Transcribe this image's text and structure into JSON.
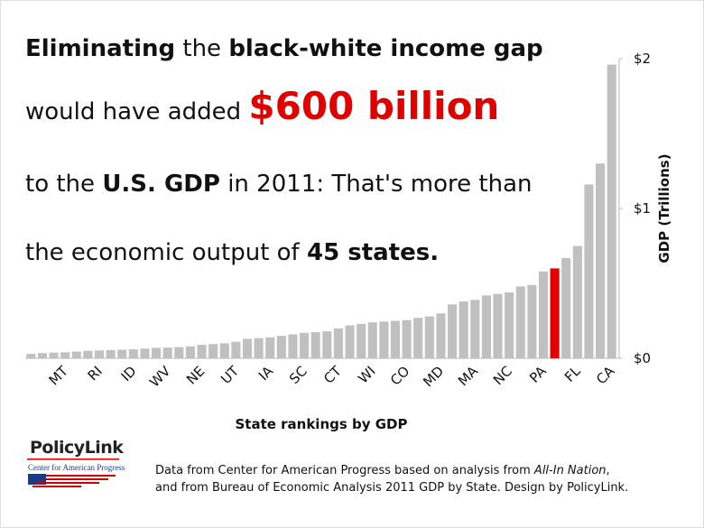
{
  "chart_data": {
    "type": "bar",
    "title_lines": [
      [
        {
          "text": "Eliminating",
          "style": "bold"
        },
        {
          "text": " the ",
          "style": "normal"
        },
        {
          "text": "black-white income gap",
          "style": "bold"
        }
      ],
      [
        {
          "text": "would have added ",
          "style": "normal"
        },
        {
          "text": "$600 billion",
          "style": "highlight"
        }
      ],
      [
        {
          "text": "to the ",
          "style": "normal"
        },
        {
          "text": "U.S. GDP",
          "style": "bold"
        },
        {
          "text": " in 2011: That's more than",
          "style": "normal"
        }
      ],
      [
        {
          "text": "the economic output of ",
          "style": "normal"
        },
        {
          "text": "45 states.",
          "style": "bold"
        }
      ]
    ],
    "categories": [
      null,
      null,
      null,
      "MT",
      null,
      null,
      "RI",
      null,
      null,
      "ID",
      null,
      null,
      "WV",
      null,
      null,
      "NE",
      null,
      null,
      "UT",
      null,
      null,
      "IA",
      null,
      null,
      "SC",
      null,
      null,
      "CT",
      null,
      null,
      "WI",
      null,
      null,
      "CO",
      null,
      null,
      "MD",
      null,
      null,
      "MA",
      null,
      null,
      "NC",
      null,
      null,
      "PA",
      null,
      null,
      "FL",
      null,
      null,
      "CA"
    ],
    "values": [
      0.03,
      0.035,
      0.038,
      0.04,
      0.045,
      0.05,
      0.052,
      0.055,
      0.058,
      0.06,
      0.065,
      0.07,
      0.072,
      0.075,
      0.08,
      0.09,
      0.095,
      0.1,
      0.11,
      0.13,
      0.135,
      0.14,
      0.15,
      0.16,
      0.17,
      0.175,
      0.18,
      0.2,
      0.22,
      0.23,
      0.24,
      0.245,
      0.25,
      0.255,
      0.27,
      0.28,
      0.3,
      0.36,
      0.38,
      0.39,
      0.42,
      0.43,
      0.44,
      0.48,
      0.49,
      0.58,
      0.6,
      0.67,
      0.75,
      1.16,
      1.3,
      1.96
    ],
    "color": "#c0c0c0",
    "highlight": {
      "index": 46,
      "color": "#e00000"
    },
    "ylim": [
      0,
      2
    ],
    "yticks": [
      {
        "value": 0,
        "label": "$0"
      },
      {
        "value": 1,
        "label": "$1"
      },
      {
        "value": 2,
        "label": "$2"
      }
    ],
    "y_label": "GDP (Trillions)",
    "x_label": "State rankings by GDP",
    "logo_primary": "PolicyLink",
    "logo_secondary": "Center for American Progress",
    "source_lines": [
      [
        {
          "text": "Data from Center for American Progress based on analysis from ",
          "style": "normal"
        },
        {
          "text": "All-In Nation",
          "style": "italic"
        },
        {
          "text": ",",
          "style": "normal"
        }
      ],
      [
        {
          "text": "and from Bureau of Economic Analysis 2011 GDP by State. Design by PolicyLink.",
          "style": "normal"
        }
      ]
    ]
  }
}
